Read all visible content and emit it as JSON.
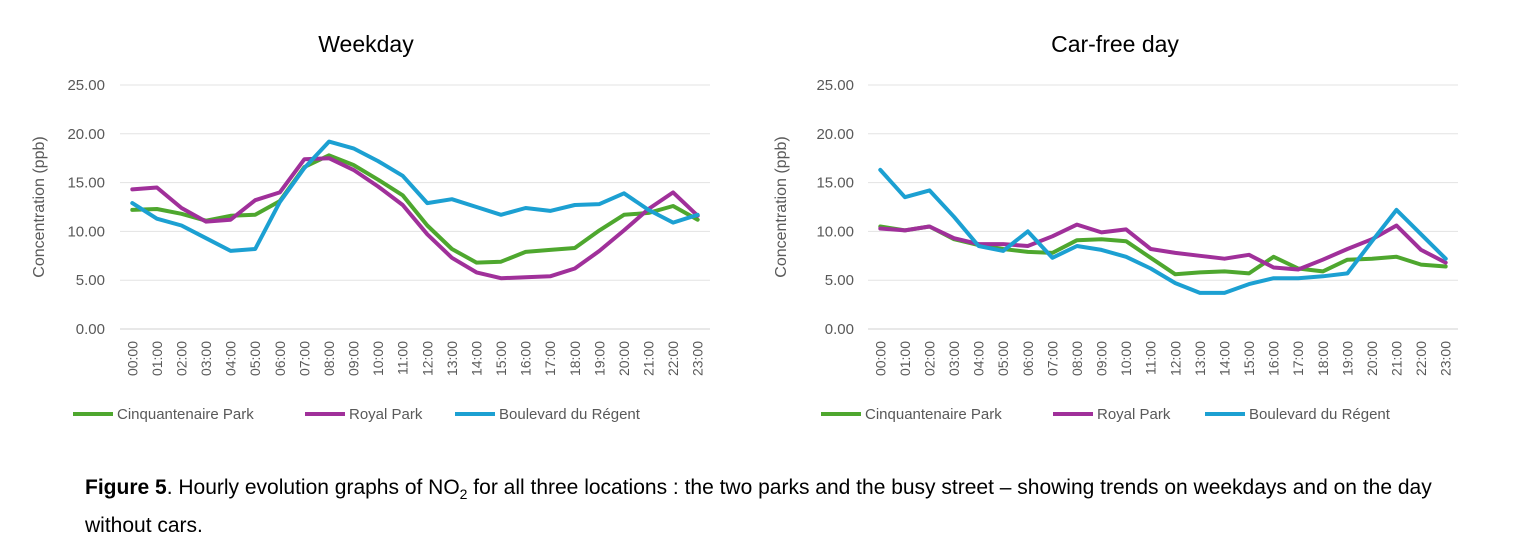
{
  "chart_data": [
    {
      "type": "line",
      "title": "Weekday",
      "xlabel": "",
      "ylabel": "Concentration (ppb)",
      "ylim": [
        0,
        25
      ],
      "yticks": [
        "0.00",
        "5.00",
        "10.00",
        "15.00",
        "20.00",
        "25.00"
      ],
      "grid": true,
      "legend": "bottom",
      "categories": [
        "00:00",
        "01:00",
        "02:00",
        "03:00",
        "04:00",
        "05:00",
        "06:00",
        "07:00",
        "08:00",
        "09:00",
        "10:00",
        "11:00",
        "12:00",
        "13:00",
        "14:00",
        "15:00",
        "16:00",
        "17:00",
        "18:00",
        "19:00",
        "20:00",
        "21:00",
        "22:00",
        "23:00"
      ],
      "series": [
        {
          "name": "Cinquantenaire Park",
          "color": "#4ea72e",
          "values": [
            12.2,
            12.3,
            11.8,
            11.1,
            11.6,
            11.7,
            13.1,
            16.6,
            17.8,
            16.8,
            15.3,
            13.7,
            10.6,
            8.2,
            6.8,
            6.9,
            7.9,
            8.1,
            8.3,
            10.1,
            11.7,
            11.9,
            12.6,
            11.2
          ]
        },
        {
          "name": "Royal Park",
          "color": "#a0309a",
          "values": [
            14.3,
            14.5,
            12.4,
            11.0,
            11.2,
            13.2,
            14.0,
            17.4,
            17.5,
            16.3,
            14.6,
            12.7,
            9.7,
            7.3,
            5.8,
            5.2,
            5.3,
            5.4,
            6.2,
            8.0,
            10.1,
            12.3,
            14.0,
            11.6
          ]
        },
        {
          "name": "Boulevard du Régent",
          "color": "#1ca0d2",
          "values": [
            12.9,
            11.3,
            10.6,
            9.3,
            8.0,
            8.2,
            13.0,
            16.5,
            19.2,
            18.5,
            17.2,
            15.7,
            12.9,
            13.3,
            12.5,
            11.7,
            12.4,
            12.1,
            12.7,
            12.8,
            13.9,
            12.2,
            10.9,
            11.7
          ]
        }
      ]
    },
    {
      "type": "line",
      "title": "Car-free day",
      "xlabel": "",
      "ylabel": "Concentration (ppb)",
      "ylim": [
        0,
        25
      ],
      "yticks": [
        "0.00",
        "5.00",
        "10.00",
        "15.00",
        "20.00",
        "25.00"
      ],
      "grid": true,
      "legend": "bottom",
      "categories": [
        "00:00",
        "01:00",
        "02:00",
        "03:00",
        "04:00",
        "05:00",
        "06:00",
        "07:00",
        "08:00",
        "09:00",
        "10:00",
        "11:00",
        "12:00",
        "13:00",
        "14:00",
        "15:00",
        "16:00",
        "17:00",
        "18:00",
        "19:00",
        "20:00",
        "21:00",
        "22:00",
        "23:00"
      ],
      "series": [
        {
          "name": "Cinquantenaire Park",
          "color": "#4ea72e",
          "values": [
            10.5,
            10.1,
            10.5,
            9.2,
            8.6,
            8.2,
            7.9,
            7.8,
            9.1,
            9.2,
            9.0,
            7.3,
            5.6,
            5.8,
            5.9,
            5.7,
            7.4,
            6.2,
            5.9,
            7.1,
            7.2,
            7.4,
            6.6,
            6.4
          ]
        },
        {
          "name": "Royal Park",
          "color": "#a0309a",
          "values": [
            10.3,
            10.1,
            10.5,
            9.3,
            8.7,
            8.7,
            8.5,
            9.5,
            10.7,
            9.9,
            10.2,
            8.2,
            7.8,
            7.5,
            7.2,
            7.6,
            6.3,
            6.1,
            7.1,
            8.2,
            9.2,
            10.6,
            8.1,
            6.8
          ]
        },
        {
          "name": "Boulevard du Régent",
          "color": "#1ca0d2",
          "values": [
            16.3,
            13.5,
            14.2,
            11.5,
            8.5,
            8.0,
            10.0,
            7.3,
            8.5,
            8.1,
            7.4,
            6.2,
            4.7,
            3.7,
            3.7,
            4.6,
            5.2,
            5.2,
            5.4,
            5.7,
            9.0,
            12.2,
            9.7,
            7.2
          ]
        }
      ]
    }
  ],
  "caption": {
    "label": "Figure 5",
    "text_before_sub": ". Hourly evolution graphs of NO",
    "sub": "2",
    "text_after_sub": " for all three locations : the two parks and the busy street – showing trends on weekdays and on the day without cars."
  }
}
